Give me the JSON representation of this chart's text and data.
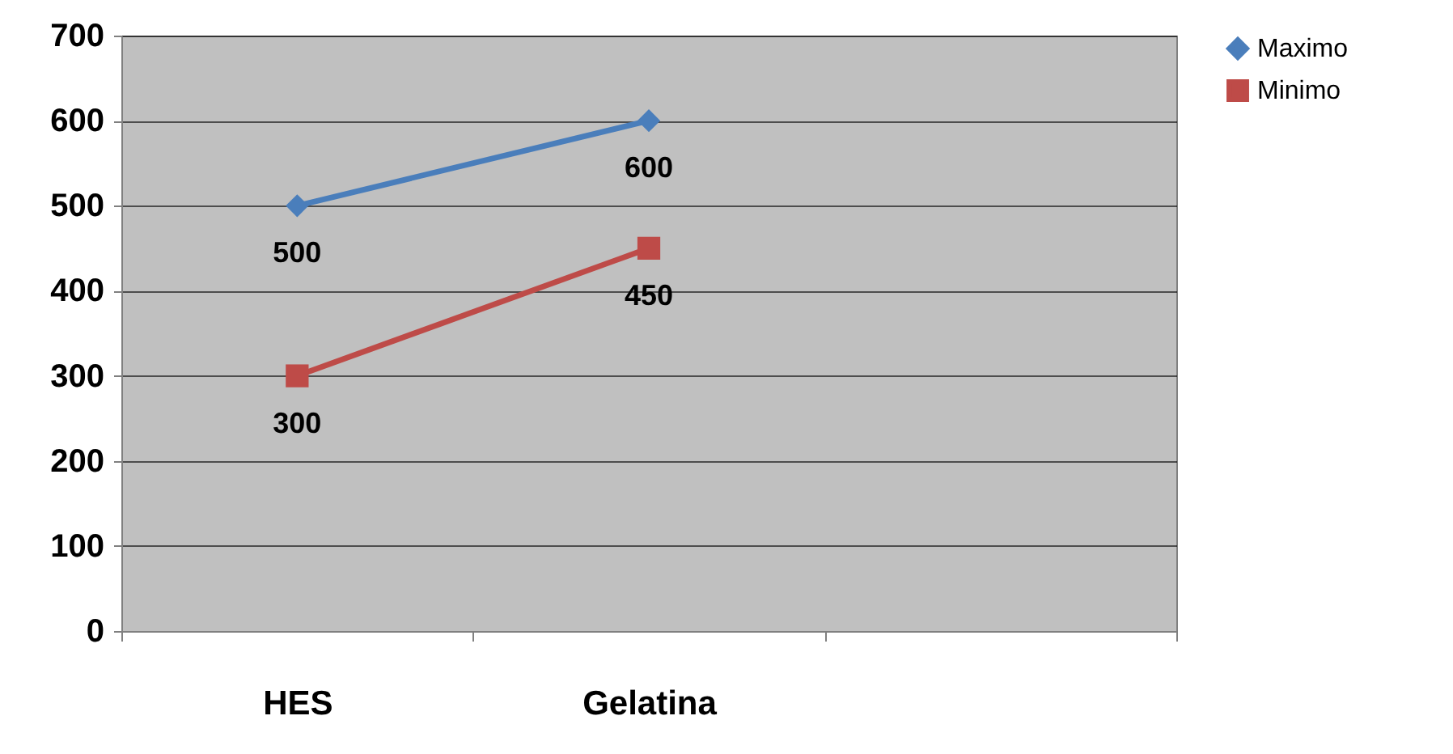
{
  "chart_data": {
    "type": "line",
    "categories": [
      "HES",
      "Gelatina",
      null
    ],
    "series": [
      {
        "name": "Maximo",
        "color": "#4a7ebb",
        "marker": "diamond",
        "values": [
          500,
          600,
          null
        ]
      },
      {
        "name": "Minimo",
        "color": "#be4b48",
        "marker": "square",
        "values": [
          300,
          450,
          null
        ]
      }
    ],
    "ylim": [
      0,
      700
    ],
    "yticks": [
      0,
      100,
      200,
      300,
      400,
      500,
      600,
      700
    ],
    "grid": "y",
    "legend": "right",
    "data_labels": true,
    "line_style": "solid"
  }
}
